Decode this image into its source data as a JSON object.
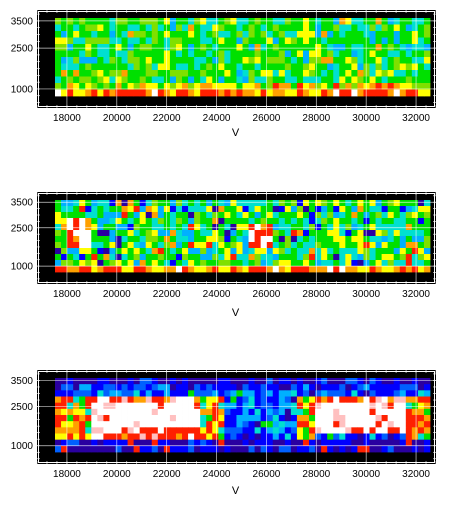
{
  "chart_data": [
    {
      "type": "heatmap",
      "panel": "top",
      "xlabel": "V",
      "ylabel": "",
      "xlim": [
        16800,
        32800
      ],
      "ylim": [
        300,
        3900
      ],
      "x_ticks": [
        18000,
        20000,
        22000,
        24000,
        26000,
        28000,
        30000,
        32000
      ],
      "x_tick_labels": [
        "18000",
        "20000",
        "22000",
        "24000",
        "26000",
        "28000",
        "30000",
        "32000"
      ],
      "y_ticks": [
        1000,
        2500,
        3500
      ],
      "y_tick_labels": [
        "1000",
        "2500",
        "3500"
      ],
      "background": "#000000",
      "grid": true,
      "description_of_field": "mostly green/cyan cells with scattered yellow; a bottom band of red/orange/yellow and a few white cells near V≈18000"
    },
    {
      "type": "heatmap",
      "panel": "middle",
      "xlabel": "V",
      "ylabel": "",
      "xlim": [
        16800,
        32800
      ],
      "ylim": [
        300,
        3900
      ],
      "x_ticks": [
        18000,
        20000,
        22000,
        24000,
        26000,
        28000,
        30000,
        32000
      ],
      "x_tick_labels": [
        "18000",
        "20000",
        "22000",
        "24000",
        "26000",
        "28000",
        "30000",
        "32000"
      ],
      "y_ticks": [
        1000,
        2500,
        3500
      ],
      "y_tick_labels": [
        "1000",
        "2500",
        "3500"
      ],
      "background": "#000000",
      "grid": true,
      "description_of_field": "mixed green/cyan/yellow/blue cells; red and white patches near V≈18000 and V≈25500; blue/purple specks"
    },
    {
      "type": "heatmap",
      "panel": "bottom",
      "xlabel": "V",
      "ylabel": "",
      "xlim": [
        16800,
        32800
      ],
      "ylim": [
        300,
        3900
      ],
      "x_ticks": [
        18000,
        20000,
        22000,
        24000,
        26000,
        28000,
        30000,
        32000
      ],
      "x_tick_labels": [
        "18000",
        "20000",
        "22000",
        "24000",
        "26000",
        "28000",
        "30000",
        "32000"
      ],
      "y_ticks": [
        1000,
        2500,
        3500
      ],
      "y_tick_labels": [
        "1000",
        "2500",
        "3500"
      ],
      "background": "#000000",
      "grid": true,
      "description_of_field": "large white regions rimmed with red between V≈18500–22500 and V≈28000–31500; blue/purple/cyan in the middle; dark purple top band"
    }
  ],
  "colors": {
    "palette": [
      "#2a00a0",
      "#0000ff",
      "#0060ff",
      "#00b0ff",
      "#00e0d0",
      "#00e000",
      "#7fe000",
      "#ffff00",
      "#ffa000",
      "#ff2000",
      "#ffffff",
      "#ffc0c0"
    ],
    "frame": "#000000",
    "grid": "#ffffff"
  }
}
